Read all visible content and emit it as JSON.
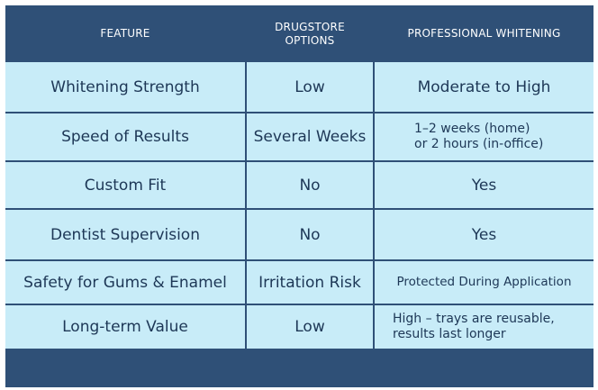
{
  "table": {
    "headers": [
      "FEATURE",
      "DRUGSTORE\nOPTIONS",
      "PROFESSIONAL WHITENING"
    ],
    "rows": [
      [
        "Whitening Strength",
        "Low",
        "Moderate to High"
      ],
      [
        "Speed of Results",
        "Several Weeks",
        "1–2 weeks (home)\nor 2 hours (in-office)"
      ],
      [
        "Custom Fit",
        "No",
        "Yes"
      ],
      [
        "Dentist Supervision",
        "No",
        "Yes"
      ],
      [
        "Safety for Gums & Enamel",
        "Irritation Risk",
        "Protected During Application"
      ],
      [
        "Long-term Value",
        "Low",
        "High – trays are reusable,\nresults last longer"
      ]
    ]
  },
  "colors": {
    "header_bg": "#2f5077",
    "cell_bg": "#c8ecf8",
    "cell_text": "#1d3756",
    "header_text": "#ffffff"
  }
}
